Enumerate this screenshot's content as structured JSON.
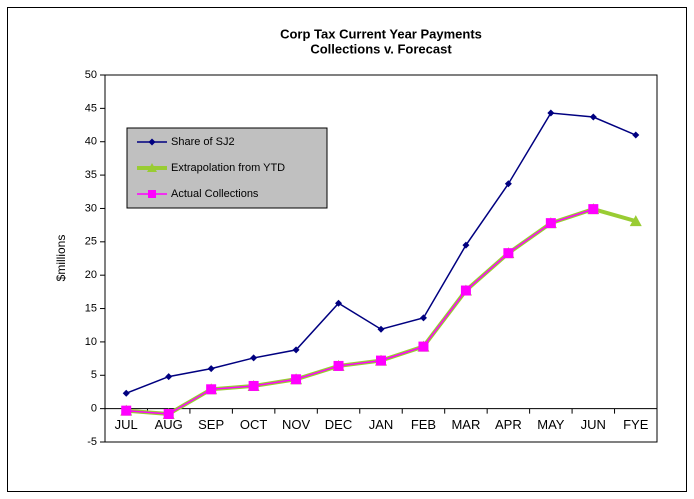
{
  "chart_data": {
    "type": "line",
    "title": "Corp Tax Current Year Payments",
    "subtitle": "Collections v. Forecast",
    "y_label": "$millions",
    "categories": [
      "JUL",
      "AUG",
      "SEP",
      "OCT",
      "NOV",
      "DEC",
      "JAN",
      "FEB",
      "MAR",
      "APR",
      "MAY",
      "JUN",
      "FYE"
    ],
    "series": [
      {
        "name": "Share of SJ2",
        "color": "#000080",
        "marker": "diamond",
        "width": 1.5,
        "values": [
          2.3,
          4.8,
          6.0,
          7.6,
          8.8,
          15.8,
          11.9,
          13.6,
          24.5,
          33.7,
          44.3,
          43.7,
          41.0
        ]
      },
      {
        "name": "Extrapolation from YTD",
        "color": "#99cc33",
        "marker": "triangle",
        "width": 4,
        "values": [
          -0.3,
          -0.8,
          2.9,
          3.4,
          4.4,
          6.4,
          7.2,
          9.3,
          17.7,
          23.3,
          27.8,
          29.9,
          28.1
        ]
      },
      {
        "name": "Actual Collections",
        "color": "#ff00ff",
        "marker": "square",
        "width": 1.5,
        "values": [
          -0.3,
          -0.8,
          2.9,
          3.4,
          4.4,
          6.4,
          7.2,
          9.3,
          17.7,
          23.3,
          27.8,
          29.9,
          null
        ]
      }
    ],
    "ylim": [
      -5,
      50
    ],
    "yticks": [
      -5,
      0,
      5,
      10,
      15,
      20,
      25,
      30,
      35,
      40,
      45,
      50
    ],
    "grid": false,
    "legend": "upper left"
  }
}
